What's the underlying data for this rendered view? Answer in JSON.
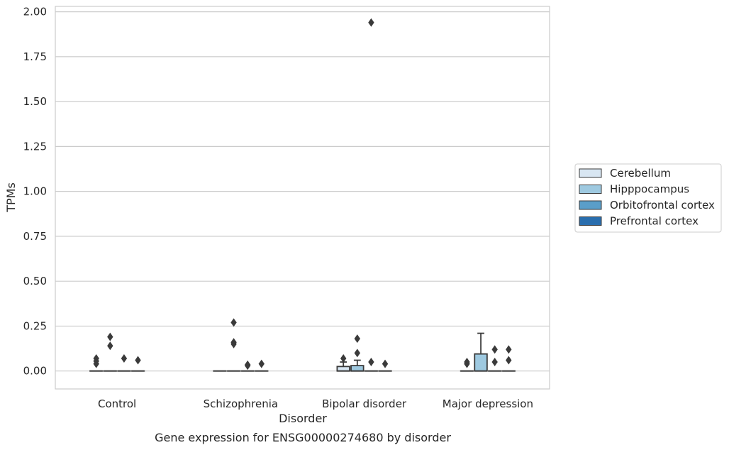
{
  "chart_data": {
    "type": "box",
    "title": "",
    "caption": "Gene expression for ENSG00000274680 by disorder",
    "xlabel": "Disorder",
    "ylabel": "TPMs",
    "ylim": [
      -0.1,
      2.03
    ],
    "yticks": [
      0.0,
      0.25,
      0.5,
      0.75,
      1.0,
      1.25,
      1.5,
      1.75,
      2.0
    ],
    "ytick_labels": [
      "0.00",
      "0.25",
      "0.50",
      "0.75",
      "1.00",
      "1.25",
      "1.50",
      "1.75",
      "2.00"
    ],
    "grid": "horizontal",
    "legend_position": "right",
    "categories": [
      "Control",
      "Schizophrenia",
      "Bipolar disorder",
      "Major depression"
    ],
    "series": [
      {
        "name": "Cerebellum",
        "color": "#d8e6f2",
        "boxes": [
          {
            "q1": 0,
            "median": 0,
            "q3": 0,
            "whislo": 0,
            "whishi": 0,
            "fliers": [
              0.04,
              0.055,
              0.07
            ]
          },
          {
            "q1": 0,
            "median": 0,
            "q3": 0,
            "whislo": 0,
            "whishi": 0,
            "fliers": []
          },
          {
            "q1": 0,
            "median": 0,
            "q3": 0.025,
            "whislo": 0,
            "whishi": 0.05,
            "fliers": [
              0.07
            ]
          },
          {
            "q1": 0,
            "median": 0,
            "q3": 0,
            "whislo": 0,
            "whishi": 0,
            "fliers": [
              0.04,
              0.05
            ]
          }
        ]
      },
      {
        "name": "Hipppocampus",
        "color": "#9ec9e0",
        "boxes": [
          {
            "q1": 0,
            "median": 0,
            "q3": 0,
            "whislo": 0,
            "whishi": 0,
            "fliers": [
              0.14,
              0.19
            ]
          },
          {
            "q1": 0,
            "median": 0,
            "q3": 0,
            "whislo": 0,
            "whishi": 0,
            "fliers": [
              0.15,
              0.16,
              0.27
            ]
          },
          {
            "q1": 0,
            "median": 0,
            "q3": 0.03,
            "whislo": 0,
            "whishi": 0.06,
            "fliers": [
              0.1,
              0.18
            ]
          },
          {
            "q1": 0,
            "median": 0,
            "q3": 0.095,
            "whislo": 0,
            "whishi": 0.21,
            "fliers": []
          }
        ]
      },
      {
        "name": "Orbitofrontal cortex",
        "color": "#5a9ec9",
        "boxes": [
          {
            "q1": 0,
            "median": 0,
            "q3": 0,
            "whislo": 0,
            "whishi": 0,
            "fliers": [
              0.07
            ]
          },
          {
            "q1": 0,
            "median": 0,
            "q3": 0,
            "whislo": 0,
            "whishi": 0,
            "fliers": [
              0.03,
              0.035
            ]
          },
          {
            "q1": 0,
            "median": 0,
            "q3": 0,
            "whislo": 0,
            "whishi": 0,
            "fliers": [
              0.05,
              1.94
            ]
          },
          {
            "q1": 0,
            "median": 0,
            "q3": 0,
            "whislo": 0,
            "whishi": 0,
            "fliers": [
              0.05,
              0.12
            ]
          }
        ]
      },
      {
        "name": "Prefrontal cortex",
        "color": "#2a6eae",
        "boxes": [
          {
            "q1": 0,
            "median": 0,
            "q3": 0,
            "whislo": 0,
            "whishi": 0,
            "fliers": [
              0.06
            ]
          },
          {
            "q1": 0,
            "median": 0,
            "q3": 0,
            "whislo": 0,
            "whishi": 0,
            "fliers": [
              0.04
            ]
          },
          {
            "q1": 0,
            "median": 0,
            "q3": 0,
            "whislo": 0,
            "whishi": 0,
            "fliers": [
              0.04
            ]
          },
          {
            "q1": 0,
            "median": 0,
            "q3": 0,
            "whislo": 0,
            "whishi": 0,
            "fliers": [
              0.06,
              0.12
            ]
          }
        ]
      }
    ]
  }
}
